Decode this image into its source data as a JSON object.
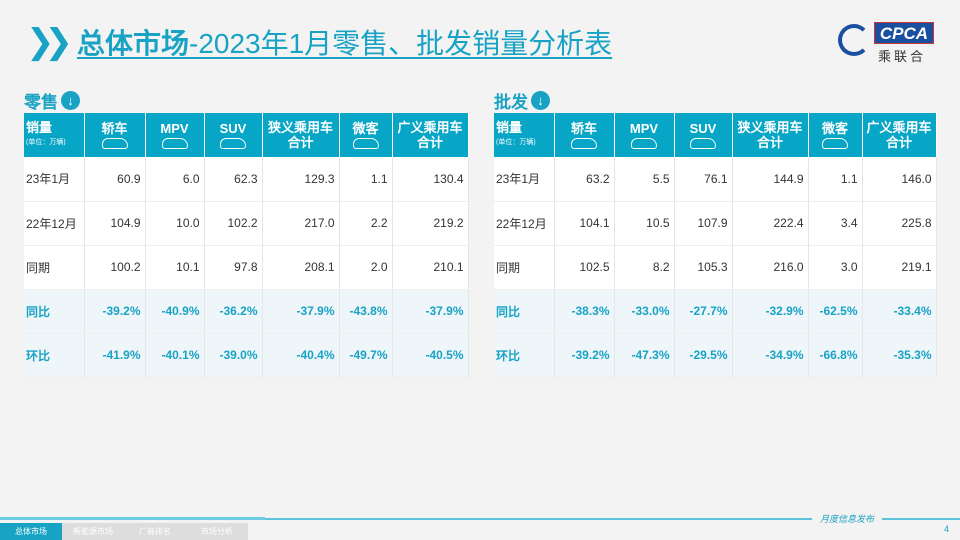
{
  "title": {
    "bold": "总体市场",
    "rest": "-2023年1月零售、批发销量分析表"
  },
  "logo": {
    "en": "CPCA",
    "cn": "乘联合"
  },
  "columns": [
    "销量",
    "轿车",
    "MPV",
    "SUV",
    "狭义乘用车合计",
    "微客",
    "广义乘用车合计"
  ],
  "unit": "(单位：万辆)",
  "retail": {
    "label": "零售",
    "rows": [
      [
        "23年1月",
        "60.9",
        "6.0",
        "62.3",
        "129.3",
        "1.1",
        "130.4"
      ],
      [
        "22年12月",
        "104.9",
        "10.0",
        "102.2",
        "217.0",
        "2.2",
        "219.2"
      ],
      [
        "同期",
        "100.2",
        "10.1",
        "97.8",
        "208.1",
        "2.0",
        "210.1"
      ],
      [
        "同比",
        "-39.2%",
        "-40.9%",
        "-36.2%",
        "-37.9%",
        "-43.8%",
        "-37.9%"
      ],
      [
        "环比",
        "-41.9%",
        "-40.1%",
        "-39.0%",
        "-40.4%",
        "-49.7%",
        "-40.5%"
      ]
    ]
  },
  "wholesale": {
    "label": "批发",
    "rows": [
      [
        "23年1月",
        "63.2",
        "5.5",
        "76.1",
        "144.9",
        "1.1",
        "146.0"
      ],
      [
        "22年12月",
        "104.1",
        "10.5",
        "107.9",
        "222.4",
        "3.4",
        "225.8"
      ],
      [
        "同期",
        "102.5",
        "8.2",
        "105.3",
        "216.0",
        "3.0",
        "219.1"
      ],
      [
        "同比",
        "-38.3%",
        "-33.0%",
        "-27.7%",
        "-32.9%",
        "-62.5%",
        "-33.4%"
      ],
      [
        "环比",
        "-39.2%",
        "-47.3%",
        "-29.5%",
        "-34.9%",
        "-66.8%",
        "-35.3%"
      ]
    ]
  },
  "footer": {
    "tabs": [
      "总体市场",
      "新能源市场",
      "厂商排名",
      "市场分析"
    ],
    "publish": "月度信息发布",
    "page": "4"
  },
  "colors": {
    "accent": "#18a3c5",
    "header": "#07a5c6"
  }
}
